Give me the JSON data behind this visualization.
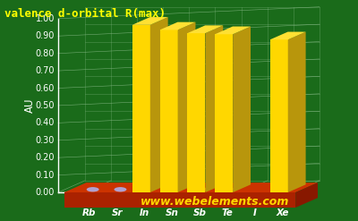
{
  "title": "valence d-orbital R(max)",
  "ylabel": "AU",
  "elements": [
    "Rb",
    "Sr",
    "In",
    "Sn",
    "Sb",
    "Te",
    "I",
    "Xe"
  ],
  "values": [
    0.0,
    0.0,
    0.964,
    0.935,
    0.916,
    0.91,
    0.0,
    0.879
  ],
  "bar_colors": [
    "none",
    "none",
    "yellow",
    "yellow",
    "yellow",
    "yellow",
    "purple",
    "yellow"
  ],
  "colors_hex": {
    "yellow_face": "#FFD700",
    "yellow_side": "#B8960C",
    "yellow_top": "#FFE033",
    "purple_face": "#7B2D8B",
    "purple_side": "#4A1A5C",
    "purple_top": "#9B3DAB",
    "red_base_top": "#CC3300",
    "red_base_face": "#AA2200",
    "red_base_side": "#881800",
    "background": "#1A6B1A",
    "bg_dark": "#145214",
    "grid_color": "#AAFFAA",
    "title_color": "#FFFF00",
    "tick_color": "#FFFFFF",
    "url_color": "#FFD700",
    "url_text": "www.webelements.com",
    "dot_color": "#B0A0D0",
    "label_color": "#FFFFFF"
  },
  "yticks": [
    0.0,
    0.1,
    0.2,
    0.3,
    0.4,
    0.5,
    0.6,
    0.7,
    0.8,
    0.9,
    1.0
  ],
  "title_fontsize": 9,
  "label_fontsize": 7.5,
  "tick_fontsize": 7,
  "url_fontsize": 9
}
